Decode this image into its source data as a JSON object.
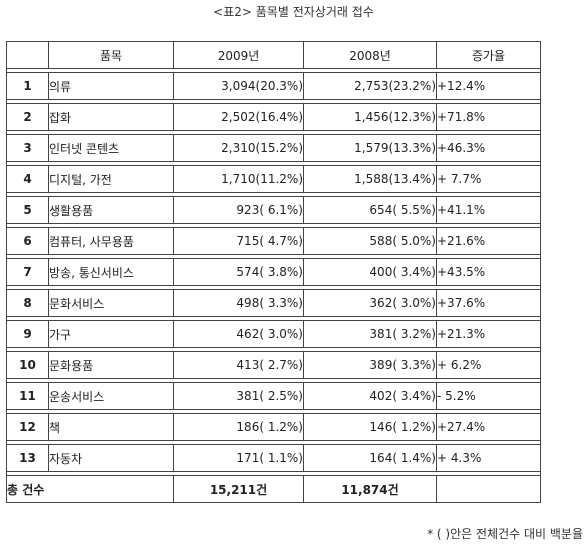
{
  "caption": "<표2> 품목별 전자상거래 접수",
  "header": {
    "col1": "",
    "col2": "품목",
    "col3": "2009년",
    "col4": "2008년",
    "col5": "증가율"
  },
  "rows": [
    {
      "no": "1",
      "item": "의류",
      "y2009": "3,094(20.3%)",
      "y2008": "2,753(23.2%)",
      "rate": "+12.4%"
    },
    {
      "no": "2",
      "item": "잡화",
      "y2009": "2,502(16.4%)",
      "y2008": "1,456(12.3%)",
      "rate": "+71.8%"
    },
    {
      "no": "3",
      "item": "인터넷 콘텐츠",
      "y2009": "2,310(15.2%)",
      "y2008": "1,579(13.3%)",
      "rate": "+46.3%"
    },
    {
      "no": "4",
      "item": "디지털, 가전",
      "y2009": "1,710(11.2%)",
      "y2008": "1,588(13.4%)",
      "rate": "+ 7.7%"
    },
    {
      "no": "5",
      "item": "생활용품",
      "y2009": "923( 6.1%)",
      "y2008": "654( 5.5%)",
      "rate": "+41.1%"
    },
    {
      "no": "6",
      "item": "컴퓨터, 사무용품",
      "y2009": "715( 4.7%)",
      "y2008": "588( 5.0%)",
      "rate": "+21.6%"
    },
    {
      "no": "7",
      "item": "방송, 통신서비스",
      "y2009": "574( 3.8%)",
      "y2008": "400( 3.4%)",
      "rate": "+43.5%"
    },
    {
      "no": "8",
      "item": "문화서비스",
      "y2009": "498( 3.3%)",
      "y2008": "362( 3.0%)",
      "rate": "+37.6%"
    },
    {
      "no": "9",
      "item": "가구",
      "y2009": "462( 3.0%)",
      "y2008": "381( 3.2%)",
      "rate": "+21.3%"
    },
    {
      "no": "10",
      "item": "문화용품",
      "y2009": "413( 2.7%)",
      "y2008": "389( 3.3%)",
      "rate": "+ 6.2%"
    },
    {
      "no": "11",
      "item": "운송서비스",
      "y2009": "381( 2.5%)",
      "y2008": "402( 3.4%)",
      "rate": "- 5.2%"
    },
    {
      "no": "12",
      "item": "책",
      "y2009": "186( 1.2%)",
      "y2008": "146( 1.2%)",
      "rate": "+27.4%"
    },
    {
      "no": "13",
      "item": "자동차",
      "y2009": "171( 1.1%)",
      "y2008": "164( 1.4%)",
      "rate": "+ 4.3%"
    }
  ],
  "total": {
    "label": "총 건수",
    "y2009": "15,211건",
    "y2008": "11,874건",
    "rate": ""
  },
  "footnote": "* ( )안은 전체건수 대비 백분율"
}
